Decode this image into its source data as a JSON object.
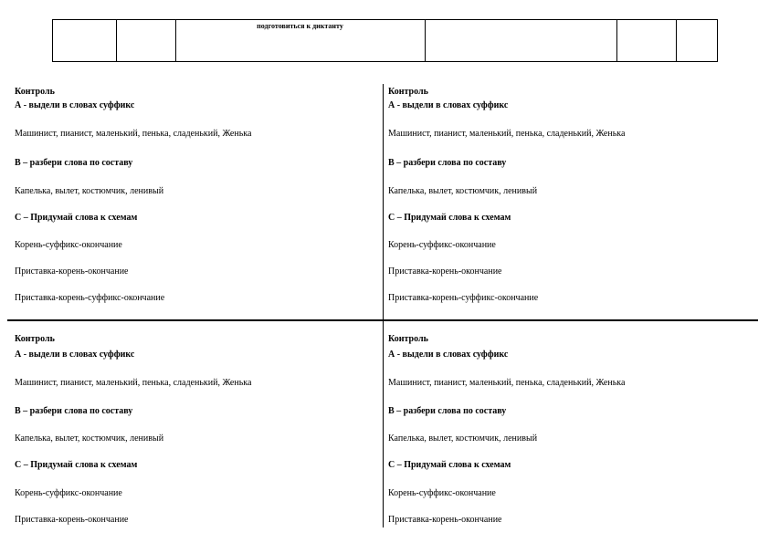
{
  "header_table": {
    "note": "подготовиться к диктанту"
  },
  "card": {
    "title": "Контроль",
    "task_a": "А - выдели в словах суффикс",
    "task_a_words": " Машинист, пианист, маленький, пенька, сладенький, Женька",
    "task_b": "В – разбери слова по составу",
    "task_b_words": "Капелька, вылет, костюмчик, ленивый",
    "task_c": "С – Придумай слова к схемам",
    "scheme_1": "Корень-суффикс-окончание",
    "scheme_2": "Приставка-корень-окончание",
    "scheme_3": "Приставка-корень-суффикс-окончание"
  }
}
